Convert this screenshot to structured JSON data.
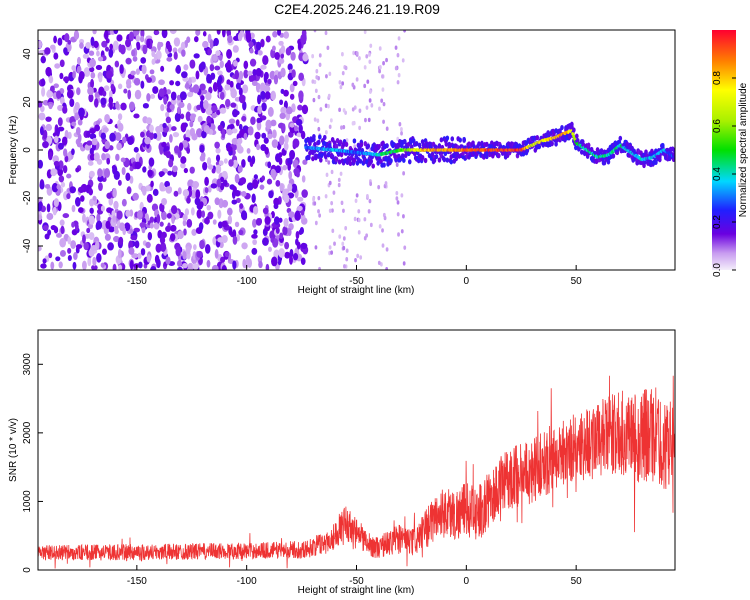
{
  "chart_data": [
    {
      "type": "heatmap",
      "title": "C2E4.2025.246.21.19.R09",
      "xlabel": "Height of straight line (km)",
      "ylabel": "Frequency (Hz)",
      "xlim": [
        -195,
        95
      ],
      "ylim": [
        -50,
        50
      ],
      "xticks": [
        -150,
        -100,
        -50,
        0,
        50
      ],
      "yticks": [
        -40,
        -20,
        0,
        20,
        40
      ],
      "colorbar": {
        "label": "Normalized spectral amplitude",
        "range": [
          0,
          1
        ],
        "ticks": [
          0.0,
          0.2,
          0.4,
          0.6,
          0.8
        ]
      },
      "noise_region_x": [
        -195,
        -73
      ],
      "signal_track": {
        "x": [
          -73,
          -60,
          -50,
          -40,
          -30,
          -20,
          -10,
          0,
          10,
          20,
          25,
          30,
          35,
          40,
          45,
          48,
          50,
          55,
          60,
          65,
          70,
          75,
          80,
          85,
          90,
          95
        ],
        "y": [
          1,
          0,
          -1,
          -2,
          0,
          0,
          0,
          0,
          0,
          0,
          0,
          2,
          4,
          5,
          7,
          8,
          3,
          0,
          -3,
          -2,
          2,
          -1,
          -4,
          -3,
          0,
          -3
        ],
        "amplitude": [
          0.35,
          0.4,
          0.35,
          0.45,
          0.6,
          0.85,
          0.9,
          0.95,
          1.0,
          1.0,
          1.0,
          0.75,
          0.8,
          0.85,
          0.9,
          0.8,
          0.55,
          0.45,
          0.5,
          0.45,
          0.5,
          0.4,
          0.45,
          0.4,
          0.4,
          0.3
        ]
      }
    },
    {
      "type": "line",
      "title": "",
      "xlabel": "Height of straight line (km)",
      "ylabel": "SNR (10 * v/v)",
      "xlim": [
        -195,
        95
      ],
      "ylim": [
        0,
        3500
      ],
      "xticks": [
        -150,
        -100,
        -50,
        0,
        50
      ],
      "yticks": [
        0,
        1000,
        2000,
        3000
      ],
      "color": "#ee3333",
      "series": [
        {
          "name": "SNR",
          "x": [
            -195,
            -150,
            -100,
            -73,
            -62,
            -55,
            -50,
            -45,
            -40,
            -30,
            -25,
            -20,
            -15,
            -10,
            -5,
            0,
            5,
            10,
            15,
            20,
            30,
            40,
            50,
            60,
            70,
            80,
            85,
            90,
            95
          ],
          "y": [
            250,
            260,
            280,
            300,
            430,
            700,
            550,
            380,
            320,
            480,
            380,
            520,
            750,
            850,
            800,
            900,
            800,
            1000,
            1200,
            1350,
            1450,
            1650,
            1800,
            1900,
            2000,
            1950,
            2000,
            1800,
            1900
          ],
          "spread": [
            110,
            120,
            120,
            130,
            180,
            260,
            220,
            170,
            160,
            230,
            200,
            260,
            340,
            380,
            380,
            400,
            400,
            420,
            440,
            460,
            480,
            500,
            520,
            560,
            620,
            700,
            750,
            650,
            600
          ]
        }
      ]
    }
  ]
}
